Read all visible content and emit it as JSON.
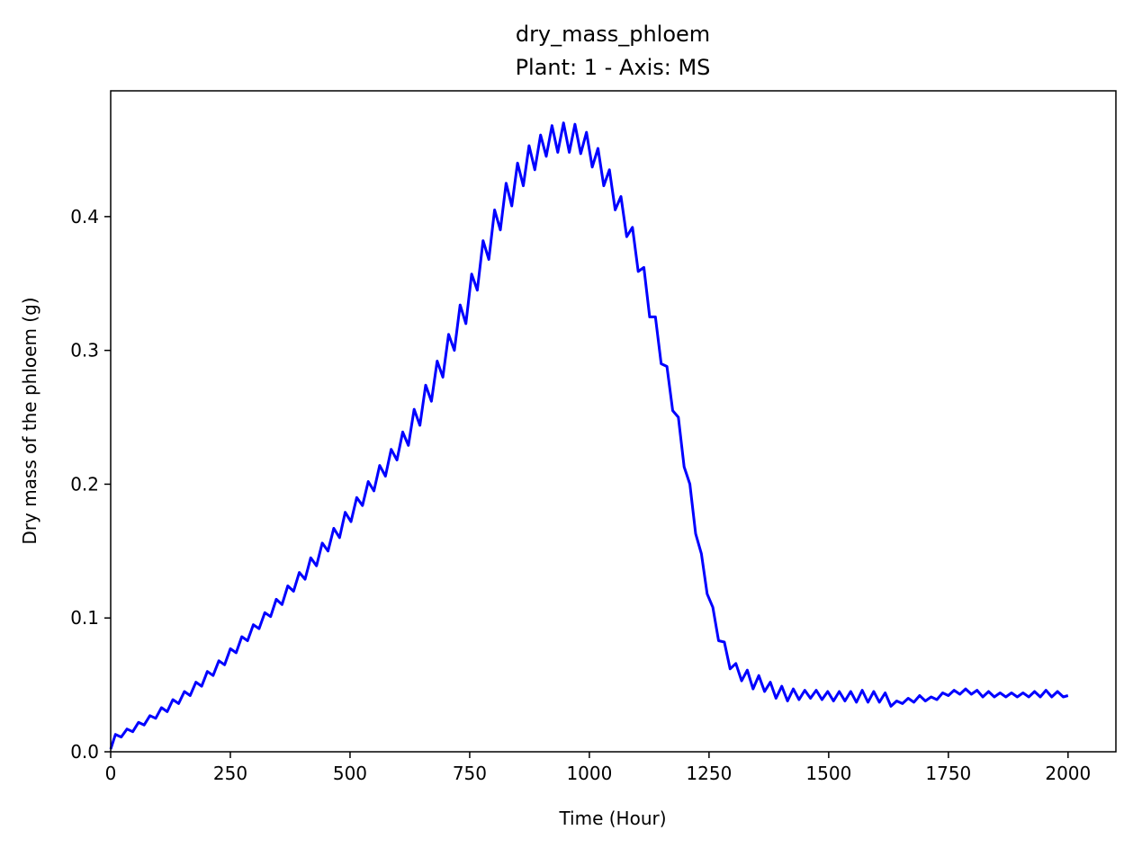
{
  "chart_data": {
    "type": "line",
    "title": "dry_mass_phloem",
    "subtitle": "Plant: 1 - Axis: MS",
    "xlabel": "Time (Hour)",
    "ylabel": "Dry mass of the phloem (g)",
    "xlim": [
      0,
      2100
    ],
    "ylim": [
      0,
      0.494
    ],
    "xticks": [
      0,
      250,
      500,
      750,
      1000,
      1250,
      1500,
      1750,
      2000
    ],
    "xtick_labels": [
      "0",
      "250",
      "500",
      "750",
      "1000",
      "1250",
      "1500",
      "1750",
      "2000"
    ],
    "yticks": [
      0.0,
      0.1,
      0.2,
      0.3,
      0.4
    ],
    "ytick_labels": [
      "0.0",
      "0.1",
      "0.2",
      "0.3",
      "0.4"
    ],
    "grid": false,
    "series": [
      {
        "color": "#0000ff",
        "x": [
          0,
          10,
          22,
          34,
          46,
          58,
          70,
          82,
          94,
          106,
          118,
          130,
          142,
          154,
          166,
          178,
          190,
          202,
          214,
          226,
          238,
          250,
          262,
          274,
          286,
          298,
          310,
          322,
          334,
          346,
          358,
          370,
          382,
          394,
          406,
          418,
          430,
          442,
          454,
          466,
          478,
          490,
          502,
          514,
          526,
          538,
          550,
          562,
          574,
          586,
          598,
          610,
          622,
          634,
          646,
          658,
          670,
          682,
          694,
          706,
          718,
          730,
          742,
          754,
          766,
          778,
          790,
          802,
          814,
          826,
          838,
          850,
          862,
          874,
          886,
          898,
          910,
          922,
          934,
          946,
          958,
          970,
          982,
          994,
          1006,
          1018,
          1030,
          1042,
          1054,
          1066,
          1078,
          1090,
          1102,
          1114,
          1126,
          1138,
          1150,
          1162,
          1174,
          1186,
          1198,
          1210,
          1222,
          1234,
          1246,
          1258,
          1270,
          1282,
          1294,
          1306,
          1318,
          1330,
          1342,
          1354,
          1366,
          1378,
          1390,
          1402,
          1414,
          1426,
          1438,
          1450,
          1462,
          1474,
          1486,
          1498,
          1510,
          1522,
          1534,
          1546,
          1558,
          1570,
          1582,
          1594,
          1606,
          1618,
          1630,
          1642,
          1654,
          1666,
          1678,
          1690,
          1702,
          1714,
          1726,
          1738,
          1750,
          1762,
          1774,
          1786,
          1798,
          1810,
          1822,
          1834,
          1846,
          1858,
          1870,
          1882,
          1894,
          1906,
          1918,
          1930,
          1942,
          1954,
          1966,
          1978,
          1990,
          2000
        ],
        "y": [
          0.002,
          0.013,
          0.011,
          0.017,
          0.015,
          0.022,
          0.02,
          0.027,
          0.025,
          0.033,
          0.03,
          0.039,
          0.036,
          0.045,
          0.042,
          0.052,
          0.049,
          0.06,
          0.057,
          0.068,
          0.065,
          0.077,
          0.074,
          0.086,
          0.083,
          0.095,
          0.092,
          0.104,
          0.101,
          0.114,
          0.11,
          0.124,
          0.12,
          0.134,
          0.129,
          0.145,
          0.139,
          0.156,
          0.15,
          0.167,
          0.16,
          0.179,
          0.172,
          0.19,
          0.184,
          0.202,
          0.195,
          0.214,
          0.206,
          0.226,
          0.218,
          0.239,
          0.229,
          0.256,
          0.244,
          0.274,
          0.262,
          0.292,
          0.28,
          0.312,
          0.3,
          0.334,
          0.32,
          0.357,
          0.345,
          0.382,
          0.368,
          0.405,
          0.39,
          0.425,
          0.408,
          0.44,
          0.423,
          0.453,
          0.435,
          0.461,
          0.445,
          0.468,
          0.448,
          0.47,
          0.448,
          0.469,
          0.447,
          0.463,
          0.437,
          0.451,
          0.423,
          0.435,
          0.405,
          0.415,
          0.385,
          0.392,
          0.359,
          0.362,
          0.325,
          0.325,
          0.29,
          0.288,
          0.255,
          0.25,
          0.213,
          0.2,
          0.163,
          0.148,
          0.118,
          0.108,
          0.083,
          0.082,
          0.062,
          0.066,
          0.053,
          0.061,
          0.047,
          0.057,
          0.045,
          0.052,
          0.04,
          0.049,
          0.038,
          0.047,
          0.039,
          0.046,
          0.04,
          0.046,
          0.039,
          0.045,
          0.038,
          0.045,
          0.038,
          0.045,
          0.037,
          0.046,
          0.037,
          0.045,
          0.037,
          0.044,
          0.034,
          0.038,
          0.036,
          0.04,
          0.037,
          0.042,
          0.038,
          0.041,
          0.039,
          0.044,
          0.042,
          0.046,
          0.043,
          0.047,
          0.043,
          0.046,
          0.041,
          0.045,
          0.041,
          0.044,
          0.041,
          0.044,
          0.041,
          0.044,
          0.041,
          0.045,
          0.041,
          0.046,
          0.041,
          0.045,
          0.041,
          0.042
        ]
      }
    ]
  }
}
